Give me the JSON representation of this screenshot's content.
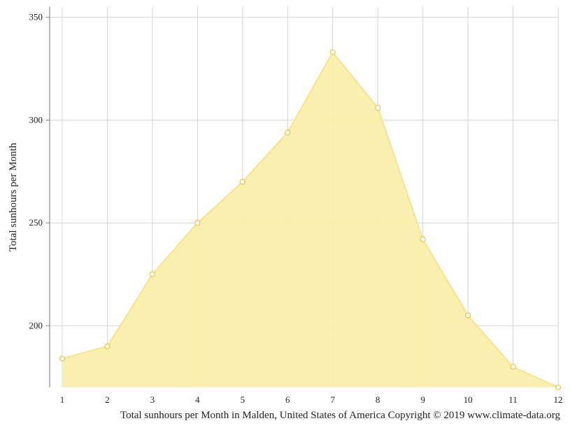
{
  "chart_data": {
    "type": "area",
    "x": [
      1,
      2,
      3,
      4,
      5,
      6,
      7,
      8,
      9,
      10,
      11,
      12
    ],
    "series": [
      {
        "values": [
          184,
          190,
          225,
          250,
          270,
          294,
          333,
          306,
          242,
          205,
          180,
          170
        ]
      }
    ],
    "ylabel": "Total sunhours per Month",
    "xlabel": "",
    "xlim": [
      1,
      12
    ],
    "ylim": [
      170,
      355
    ],
    "yticks": [
      200,
      250,
      300,
      350
    ],
    "grid": true,
    "legend": "none",
    "colors": {
      "fill": "#f9eeaa",
      "line": "#f8e38d",
      "marker_stroke": "#e8c94f",
      "grid": "#d4d4d4",
      "axis": "#888888"
    }
  },
  "caption": "Total sunhours per Month in Malden, United States of America Copyright © 2019 www.climate-data.org"
}
